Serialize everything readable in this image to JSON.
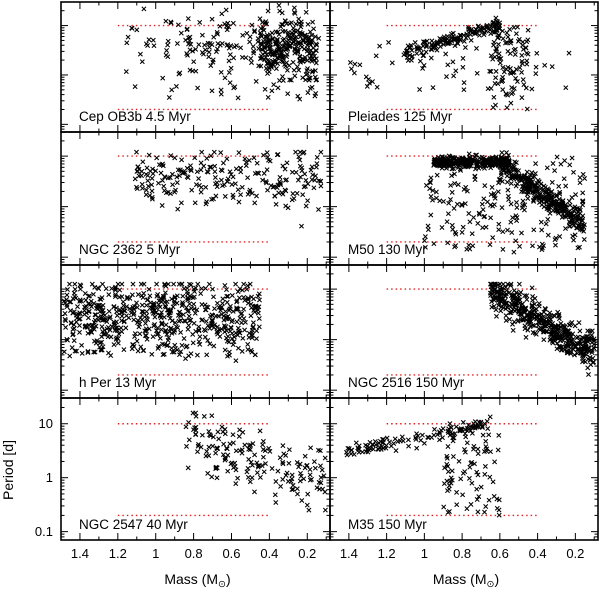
{
  "chart_data": {
    "type": "scatter",
    "layout": "4 rows x 2 columns of panels sharing axes",
    "xlabel": "Mass (M",
    "xlabel_symbol": "⊙",
    "xlabel_close": ")",
    "ylabel": "Period [d]",
    "xlim": [
      1.5,
      0.08
    ],
    "ylim": [
      0.07,
      30
    ],
    "x_ticks": [
      1.4,
      1.2,
      1.0,
      0.8,
      0.6,
      0.4,
      0.2
    ],
    "x_tick_labels": [
      "1.4",
      "1.2",
      "1",
      "0.8",
      "0.6",
      "0.4",
      "0.2"
    ],
    "y_ticks": [
      0.1,
      1,
      10
    ],
    "y_tick_labels": [
      "0.1",
      "1",
      "10"
    ],
    "reference_lines": {
      "x_range": [
        1.2,
        0.4
      ],
      "upper_period": 10,
      "lower_period": 0.2,
      "color": "#e02020"
    },
    "point_color": "#000000",
    "panels": [
      {
        "label": "Cep OB3b 4.5 Myr",
        "col": 0,
        "row": 0,
        "n": 420,
        "distribution": "dense band at 2-12 d, densest for 0.2-0.4 Msun, sparse down to 0.3 d"
      },
      {
        "label": "Pleiades 125 Myr",
        "col": 1,
        "row": 0,
        "n": 300,
        "distribution": "slow-rotator sequence rising from 3 d at 1.1 Msun to 10 d at 0.65 Msun, fast rotators 0.2-1 d at low mass"
      },
      {
        "label": "NGC 2362 5 Myr",
        "col": 0,
        "row": 1,
        "n": 230,
        "distribution": "scattered 0.8-12 d across 1.1-0.1 Msun"
      },
      {
        "label": "M50 130 Myr",
        "col": 1,
        "row": 1,
        "n": 800,
        "distribution": "dense slow sequence near 8-10 d at 0.9-0.6 Msun curving down to 0.3 d at 0.2 Msun"
      },
      {
        "label": "h Per 13 Myr",
        "col": 0,
        "row": 2,
        "n": 620,
        "distribution": "dense 1-10 d across 1.5-0.45 Msun, periods 0.4-12 d"
      },
      {
        "label": "NGC 2516 150 Myr",
        "col": 1,
        "row": 2,
        "n": 460,
        "distribution": "sequence from 10 d at 0.65 Msun falling to 0.3-1 d at 0.1-0.3 Msun"
      },
      {
        "label": "NGC 2547 40 Myr",
        "col": 0,
        "row": 3,
        "n": 170,
        "distribution": "scattered 0.3-10 d for 0.85-0.1 Msun, trend decreasing with mass"
      },
      {
        "label": "M35 150 Myr",
        "col": 1,
        "row": 3,
        "n": 200,
        "distribution": "sequence from 3 d at 1.4 Msun rising to 9 d at 0.7 Msun plus fast rotators 0.3-1 d"
      }
    ]
  }
}
